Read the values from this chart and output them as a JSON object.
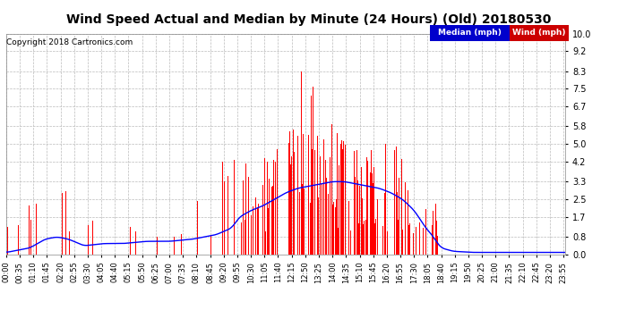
{
  "title": "Wind Speed Actual and Median by Minute (24 Hours) (Old) 20180530",
  "copyright": "Copyright 2018 Cartronics.com",
  "legend_median_label": "Median (mph)",
  "legend_wind_label": "Wind (mph)",
  "legend_median_color": "#0000cc",
  "legend_wind_color": "#cc0000",
  "background_color": "#ffffff",
  "plot_bg_color": "#ffffff",
  "grid_color": "#bbbbbb",
  "bar_color": "#ff0000",
  "line_color": "#0000ff",
  "yticks": [
    0.0,
    0.8,
    1.7,
    2.5,
    3.3,
    4.2,
    5.0,
    5.8,
    6.7,
    7.5,
    8.3,
    9.2,
    10.0
  ],
  "ymax": 10.0,
  "ymin": 0.0,
  "n_minutes": 1440,
  "title_fontsize": 10,
  "copyright_fontsize": 6.5,
  "tick_fontsize": 6,
  "ylabel_fontsize": 7,
  "xlabel_interval": 35,
  "figwidth": 6.9,
  "figheight": 3.75,
  "dpi": 100
}
